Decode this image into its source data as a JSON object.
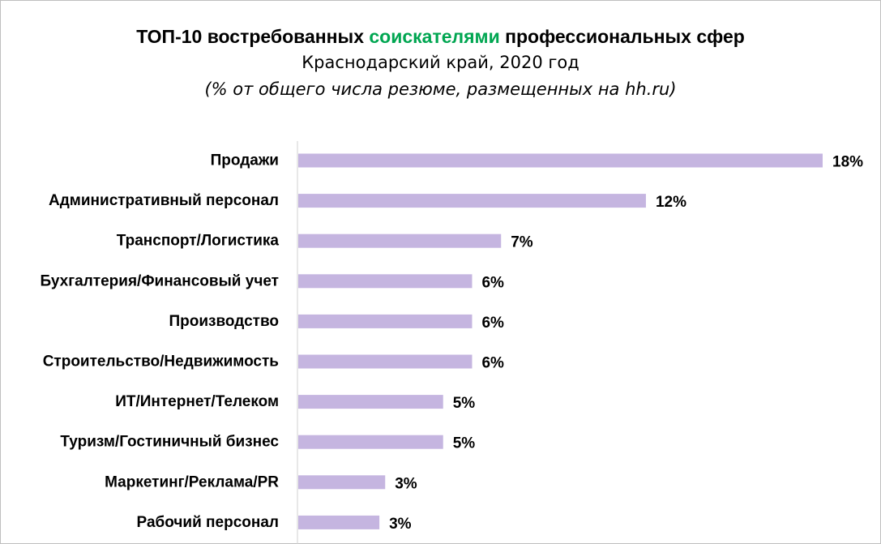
{
  "chart_data": {
    "type": "bar",
    "orientation": "horizontal",
    "title_parts": [
      {
        "text": "ТОП-10 востребованных ",
        "accent": false
      },
      {
        "text": "соискателями",
        "accent": true
      },
      {
        "text": " профессиональных сфер",
        "accent": false
      }
    ],
    "subtitle": "Краснодарский край, 2020 год",
    "note": "(% от общего числа резюме, размещенных на hh.ru)",
    "categories": [
      "Продажи",
      "Административный персонал",
      "Транспорт/Логистика",
      "Бухгалтерия/Финансовый учет",
      "Производство",
      "Строительство/Недвижимость",
      "ИТ/Интернет/Телеком",
      "Туризм/Гостиничный бизнес",
      "Маркетинг/Реклама/PR",
      "Рабочий персонал"
    ],
    "values": [
      18,
      12,
      7,
      6,
      6,
      6,
      5,
      5,
      3,
      3
    ],
    "exact_values": [
      18.1,
      12.0,
      7.0,
      6.0,
      6.0,
      6.0,
      5.0,
      5.0,
      3.0,
      2.8
    ],
    "value_labels": [
      "18%",
      "12%",
      "7%",
      "6%",
      "6%",
      "6%",
      "5%",
      "5%",
      "3%",
      "3%"
    ],
    "unit": "%",
    "xlim": [
      0,
      18.1
    ],
    "grid": false,
    "legend": "none",
    "colors": {
      "bar": "#c5b5e0",
      "accent": "#00a651",
      "axis": "#d0d0d0",
      "border": "#bfbfbf"
    }
  }
}
